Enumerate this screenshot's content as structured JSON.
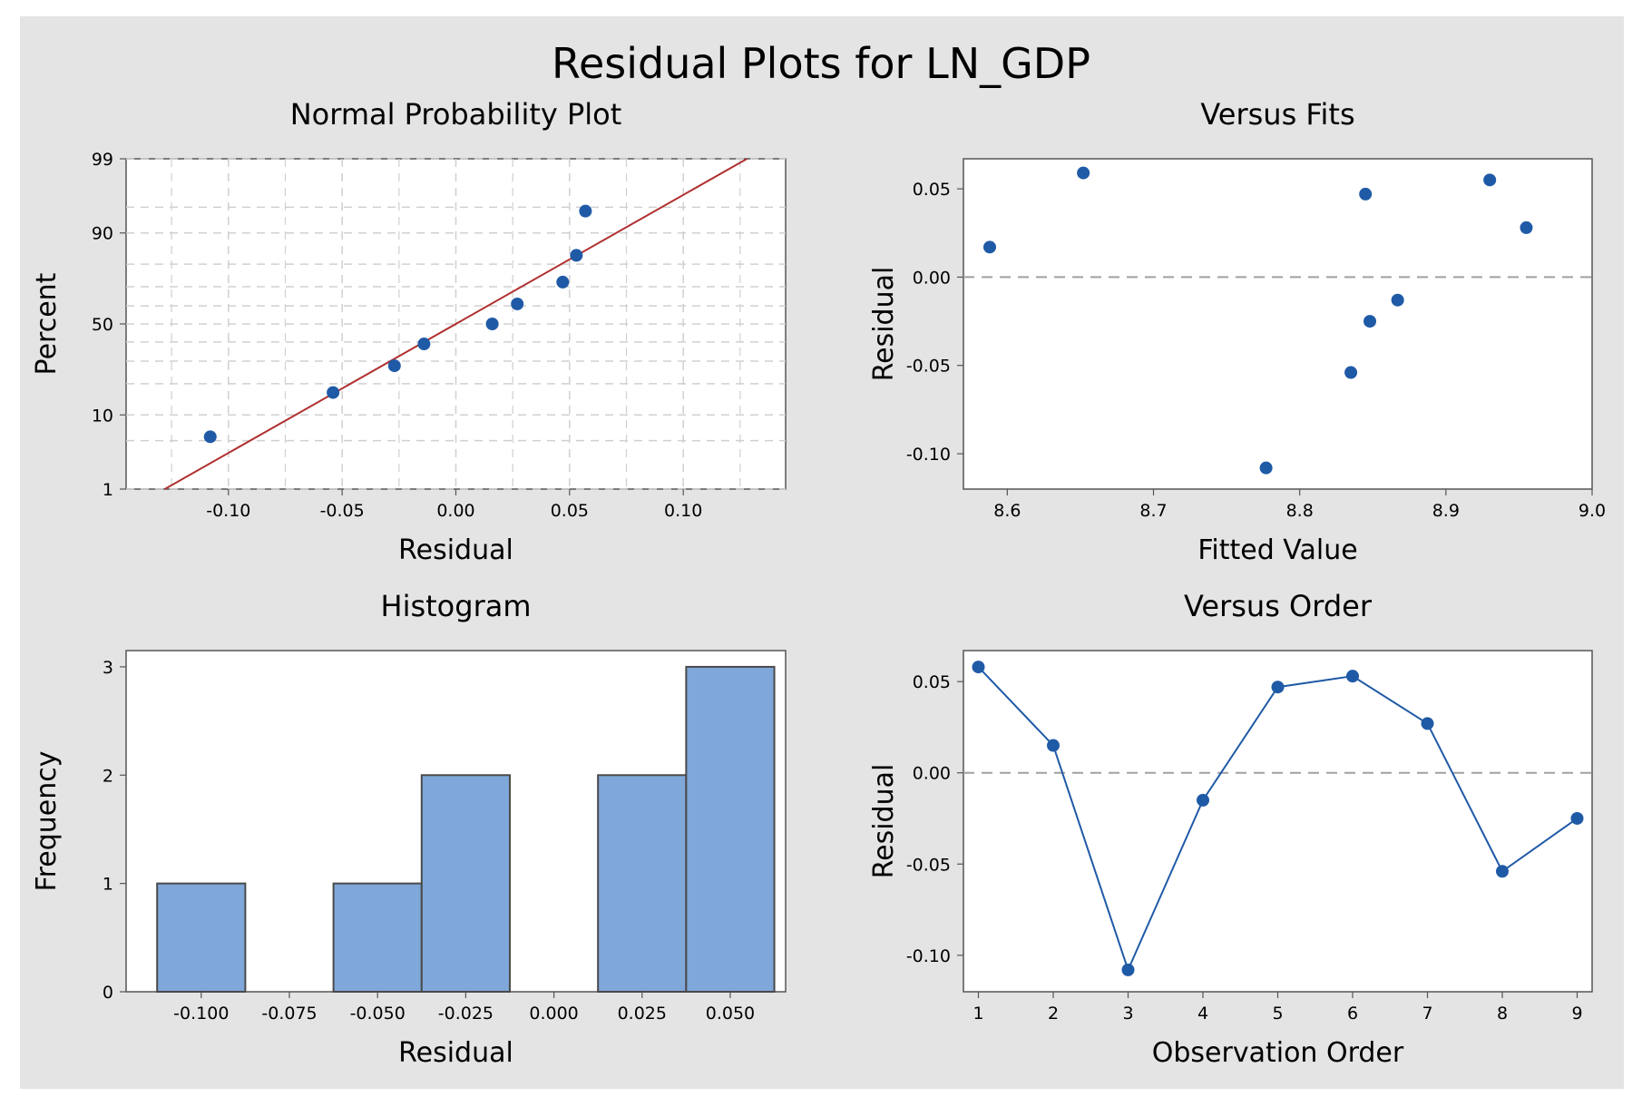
{
  "title": "Residual Plots for LN_GDP",
  "colors": {
    "background": "#e4e4e4",
    "plot_bg": "#ffffff",
    "marker": "#1f5aa6",
    "fit_line": "#b03030",
    "bar_fill": "#7fa7d9",
    "bar_edge": "#4a4a4a",
    "grid": "#d0d0d0",
    "refline": "#a0a0a0"
  },
  "chart_data": [
    {
      "id": "normal",
      "type": "scatter",
      "title": "Normal Probability Plot",
      "xlabel": "Residual",
      "ylabel": "Percent",
      "xlim": [
        -0.145,
        0.145
      ],
      "xticks": [
        -0.1,
        -0.05,
        0.0,
        0.05,
        0.1
      ],
      "xtick_labels": [
        "-0.10",
        "-0.05",
        "0.00",
        "0.05",
        "0.10"
      ],
      "yticks": [
        1,
        10,
        50,
        90,
        99
      ],
      "ytick_labels": [
        "1",
        "10",
        "50",
        "90",
        "99"
      ],
      "y_scale": "normal-probability",
      "grid": true,
      "points": [
        {
          "x": -0.108,
          "y": 5.6
        },
        {
          "x": -0.054,
          "y": 16.7
        },
        {
          "x": -0.027,
          "y": 27.8
        },
        {
          "x": -0.014,
          "y": 38.9
        },
        {
          "x": 0.016,
          "y": 50.0
        },
        {
          "x": 0.027,
          "y": 61.1
        },
        {
          "x": 0.047,
          "y": 72.2
        },
        {
          "x": 0.053,
          "y": 83.3
        },
        {
          "x": 0.057,
          "y": 94.4
        }
      ],
      "fit_line": [
        {
          "x": -0.128,
          "y": 1
        },
        {
          "x": 0.128,
          "y": 99
        }
      ]
    },
    {
      "id": "fits",
      "type": "scatter",
      "title": "Versus Fits",
      "xlabel": "Fitted Value",
      "ylabel": "Residual",
      "xlim": [
        8.57,
        9.0
      ],
      "ylim": [
        -0.12,
        0.067
      ],
      "xticks": [
        8.6,
        8.7,
        8.8,
        8.9,
        9.0
      ],
      "xtick_labels": [
        "8.6",
        "8.7",
        "8.8",
        "8.9",
        "9.0"
      ],
      "yticks": [
        0.05,
        0.0,
        -0.05,
        -0.1
      ],
      "ytick_labels": [
        "0.05",
        "0.00",
        "-0.05",
        "-0.10"
      ],
      "reference_y": 0,
      "points": [
        {
          "x": 8.588,
          "y": 0.017
        },
        {
          "x": 8.652,
          "y": 0.059
        },
        {
          "x": 8.777,
          "y": -0.108
        },
        {
          "x": 8.835,
          "y": -0.054
        },
        {
          "x": 8.845,
          "y": 0.047
        },
        {
          "x": 8.848,
          "y": -0.025
        },
        {
          "x": 8.867,
          "y": -0.013
        },
        {
          "x": 8.93,
          "y": 0.055
        },
        {
          "x": 8.955,
          "y": 0.028
        }
      ]
    },
    {
      "id": "hist",
      "type": "bar",
      "title": "Histogram",
      "xlabel": "Residual",
      "ylabel": "Frequency",
      "xlim": [
        -0.1213,
        0.0657
      ],
      "ylim": [
        0,
        3.15
      ],
      "xticks": [
        -0.1,
        -0.075,
        -0.05,
        -0.025,
        0.0,
        0.025,
        0.05
      ],
      "xtick_labels": [
        "-0.100",
        "-0.075",
        "-0.050",
        "-0.025",
        "0.000",
        "0.025",
        "0.050"
      ],
      "yticks": [
        0,
        1,
        2,
        3
      ],
      "ytick_labels": [
        "0",
        "1",
        "2",
        "3"
      ],
      "bins": [
        {
          "start": -0.1125,
          "end": -0.0875,
          "count": 1
        },
        {
          "start": -0.0625,
          "end": -0.0375,
          "count": 1
        },
        {
          "start": -0.0375,
          "end": -0.0125,
          "count": 2
        },
        {
          "start": 0.0125,
          "end": 0.0375,
          "count": 2
        },
        {
          "start": 0.0375,
          "end": 0.0625,
          "count": 3
        }
      ]
    },
    {
      "id": "order",
      "type": "line",
      "title": "Versus Order",
      "xlabel": "Observation Order",
      "ylabel": "Residual",
      "xlim": [
        0.8,
        9.2
      ],
      "ylim": [
        -0.12,
        0.067
      ],
      "xticks": [
        1,
        2,
        3,
        4,
        5,
        6,
        7,
        8,
        9
      ],
      "xtick_labels": [
        "1",
        "2",
        "3",
        "4",
        "5",
        "6",
        "7",
        "8",
        "9"
      ],
      "yticks": [
        0.05,
        0.0,
        -0.05,
        -0.1
      ],
      "ytick_labels": [
        "0.05",
        "0.00",
        "-0.05",
        "-0.10"
      ],
      "reference_y": 0,
      "x": [
        1,
        2,
        3,
        4,
        5,
        6,
        7,
        8,
        9
      ],
      "values": [
        0.058,
        0.015,
        -0.108,
        -0.015,
        0.047,
        0.053,
        0.027,
        -0.054,
        -0.025
      ]
    }
  ]
}
